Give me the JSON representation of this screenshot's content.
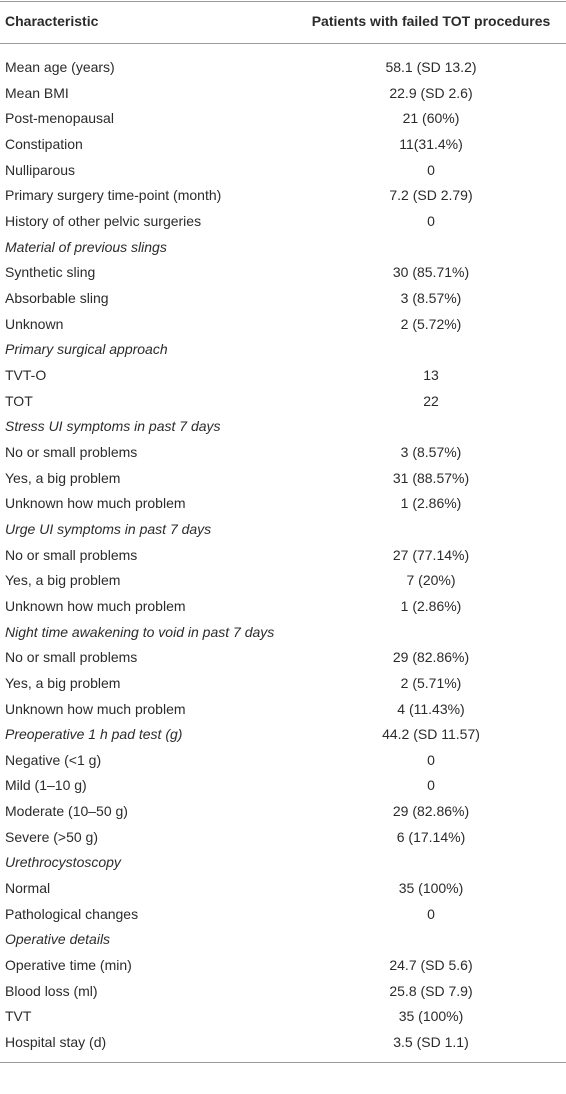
{
  "table": {
    "header": [
      "Characteristic",
      "Patients with failed TOT procedures"
    ],
    "rows": [
      {
        "label": "Mean age (years)",
        "value": "58.1 (SD 13.2)"
      },
      {
        "label": "Mean BMI",
        "value": "22.9 (SD 2.6)"
      },
      {
        "label": "Post-menopausal",
        "value": "21 (60%)"
      },
      {
        "label": "Constipation",
        "value": "11(31.4%)"
      },
      {
        "label": "Nulliparous",
        "value": "0"
      },
      {
        "label": "Primary surgery time-point (month)",
        "value": "7.2 (SD 2.79)"
      },
      {
        "label": "History of other pelvic surgeries",
        "value": "0"
      },
      {
        "label": "Material of previous slings",
        "italic": true
      },
      {
        "label": "Synthetic sling",
        "value": "30 (85.71%)"
      },
      {
        "label": "Absorbable sling",
        "value": "3 (8.57%)"
      },
      {
        "label": "Unknown",
        "value": "2 (5.72%)"
      },
      {
        "label": "Primary surgical approach",
        "italic": true
      },
      {
        "label": "TVT-O",
        "value": "13"
      },
      {
        "label": "TOT",
        "value": "22"
      },
      {
        "label": "Stress UI symptoms in past 7 days",
        "italic": true
      },
      {
        "label": "No or small problems",
        "value": "3 (8.57%)"
      },
      {
        "label": "Yes, a big problem",
        "value": "31 (88.57%)"
      },
      {
        "label": "Unknown how much problem",
        "value": "1 (2.86%)"
      },
      {
        "label": "Urge UI symptoms in past 7 days",
        "italic": true
      },
      {
        "label": "No or small problems",
        "value": "27 (77.14%)"
      },
      {
        "label": "Yes, a big problem",
        "value": "7 (20%)"
      },
      {
        "label": "Unknown how much problem",
        "value": "1 (2.86%)"
      },
      {
        "label": "Night time awakening to void in past 7 days",
        "italic": true
      },
      {
        "label": "No or small problems",
        "value": "29 (82.86%)"
      },
      {
        "label": "Yes, a big problem",
        "value": "2 (5.71%)"
      },
      {
        "label": "Unknown how much problem",
        "value": "4 (11.43%)"
      },
      {
        "label": "Preoperative 1 h pad test (g)",
        "value": "44.2 (SD 11.57)",
        "italic": true
      },
      {
        "label": "Negative (<1 g)",
        "value": "0"
      },
      {
        "label": "Mild (1–10 g)",
        "value": "0"
      },
      {
        "label": "Moderate (10–50 g)",
        "value": "29 (82.86%)"
      },
      {
        "label": "Severe (>50 g)",
        "value": "6 (17.14%)"
      },
      {
        "label": "Urethrocystoscopy",
        "italic": true
      },
      {
        "label": "Normal",
        "value": "35 (100%)"
      },
      {
        "label": "Pathological changes",
        "value": "0"
      },
      {
        "label": "Operative details",
        "italic": true
      },
      {
        "label": "Operative time (min)",
        "value": "24.7 (SD 5.6)"
      },
      {
        "label": "Blood loss (ml)",
        "value": "25.8 (SD 7.9)"
      },
      {
        "label": "TVT",
        "value": "35 (100%)"
      },
      {
        "label": "Hospital stay (d)",
        "value": "3.5 (SD 1.1)"
      }
    ]
  }
}
